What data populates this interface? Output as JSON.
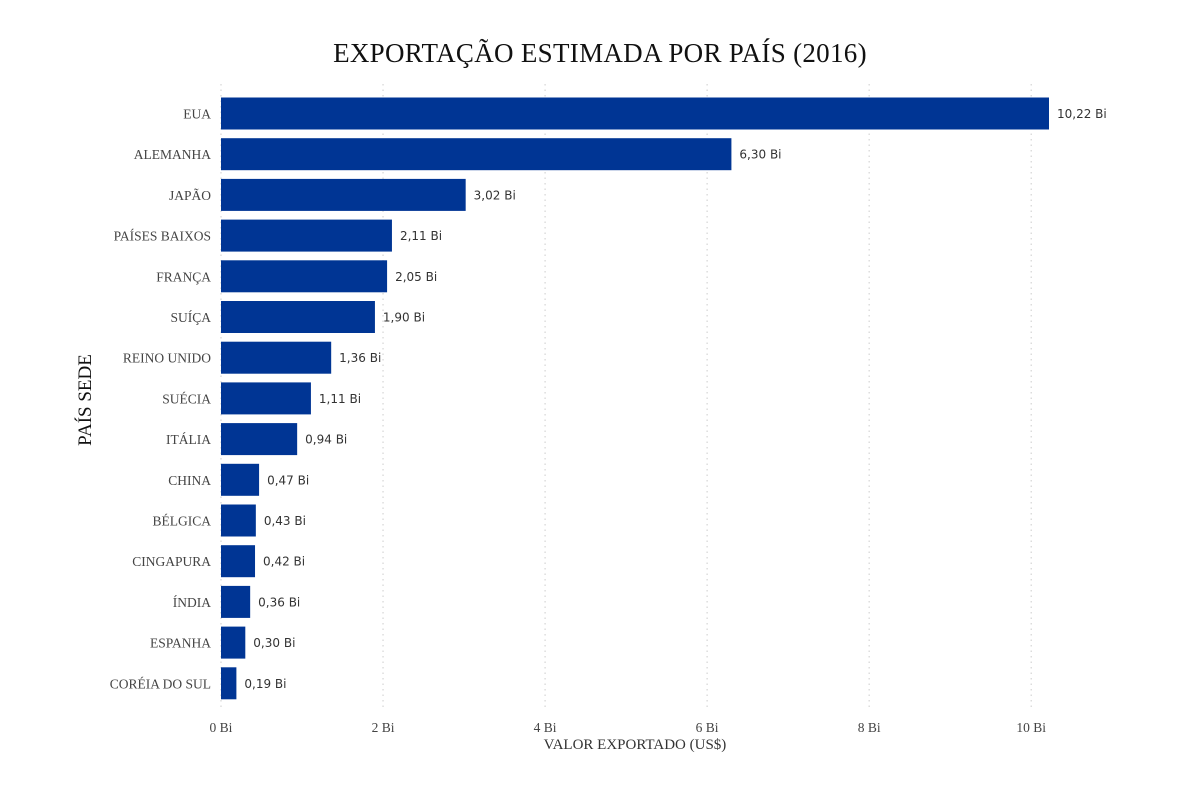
{
  "chart_data": {
    "type": "bar",
    "orientation": "horizontal",
    "title": "EXPORTAÇÃO ESTIMADA POR PAÍS (2016)",
    "xlabel": "VALOR EXPORTADO (US$)",
    "ylabel": "PAÍS SEDE",
    "categories": [
      "EUA",
      "ALEMANHA",
      "JAPÃO",
      "PAÍSES BAIXOS",
      "FRANÇA",
      "SUÍÇA",
      "REINO UNIDO",
      "SUÉCIA",
      "ITÁLIA",
      "CHINA",
      "BÉLGICA",
      "CINGAPURA",
      "ÍNDIA",
      "ESPANHA",
      "CORÉIA DO SUL"
    ],
    "values": [
      10.22,
      6.3,
      3.02,
      2.11,
      2.05,
      1.9,
      1.36,
      1.11,
      0.94,
      0.47,
      0.43,
      0.42,
      0.36,
      0.3,
      0.19
    ],
    "value_labels": [
      "10,22 Bi",
      "6,30 Bi",
      "3,02 Bi",
      "2,11 Bi",
      "2,05 Bi",
      "1,90 Bi",
      "1,36 Bi",
      "1,11 Bi",
      "0,94 Bi",
      "0,47 Bi",
      "0,43 Bi",
      "0,42 Bi",
      "0,36 Bi",
      "0,30 Bi",
      "0,19 Bi"
    ],
    "x_ticks": [
      0,
      2,
      4,
      6,
      8,
      10
    ],
    "x_tick_labels": [
      "0 Bi",
      "2 Bi",
      "4 Bi",
      "6 Bi",
      "8 Bi",
      "10 Bi"
    ],
    "xlim": [
      0,
      10.22
    ],
    "grid": "vertical dotted",
    "legend": "none",
    "colors": {
      "bar": "#003594",
      "grid": "#cccccc"
    }
  }
}
